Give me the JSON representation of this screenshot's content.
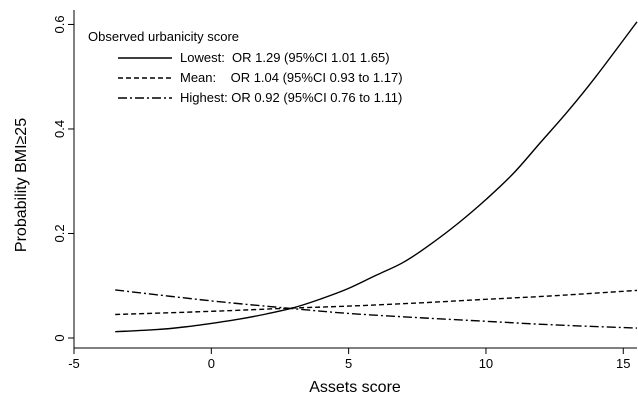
{
  "chart_data": {
    "type": "line",
    "title": "",
    "xlabel": "Assets score",
    "ylabel": "Probability BMI≥25",
    "xlim": [
      -5,
      15.5
    ],
    "ylim": [
      0,
      0.62
    ],
    "xticks": [
      -5,
      0,
      5,
      10,
      15
    ],
    "yticks": [
      0,
      0.2,
      0.4,
      0.6
    ],
    "xtick_labels": [
      "-5",
      "0",
      "5",
      "10",
      "15"
    ],
    "ytick_labels": [
      "0",
      "0.2",
      "0.4",
      "0.6"
    ],
    "grid": false,
    "legend": {
      "title": "Observed urbanicity score",
      "placement": "top-left"
    },
    "series": [
      {
        "name": "Lowest:",
        "label": "Lowest:  OR 1.29 (95%CI 1.01 1.65)",
        "dash": "solid",
        "x": [
          -3.5,
          -2,
          -1,
          0,
          1,
          2,
          3,
          4,
          5,
          6,
          7,
          8,
          9,
          10,
          11,
          12,
          13,
          14,
          15.5
        ],
        "y": [
          0.012,
          0.016,
          0.021,
          0.028,
          0.036,
          0.046,
          0.058,
          0.075,
          0.095,
          0.12,
          0.145,
          0.18,
          0.22,
          0.265,
          0.315,
          0.375,
          0.435,
          0.5,
          0.605
        ]
      },
      {
        "name": "Mean:",
        "label": "Mean:    OR 1.04 (95%CI 0.93 to 1.17)",
        "dash": "dashed",
        "x": [
          -3.5,
          0,
          2.8,
          5,
          7.5,
          10,
          12.5,
          15.5
        ],
        "y": [
          0.045,
          0.051,
          0.057,
          0.061,
          0.067,
          0.074,
          0.081,
          0.091
        ]
      },
      {
        "name": "Highest:",
        "label": "Highest: OR 0.92 (95%CI 0.76 to 1.11)",
        "dash": "dashdot",
        "x": [
          -3.5,
          0,
          2.8,
          5,
          7.5,
          10,
          12.5,
          15.5
        ],
        "y": [
          0.092,
          0.071,
          0.057,
          0.047,
          0.039,
          0.032,
          0.025,
          0.019
        ]
      }
    ]
  }
}
